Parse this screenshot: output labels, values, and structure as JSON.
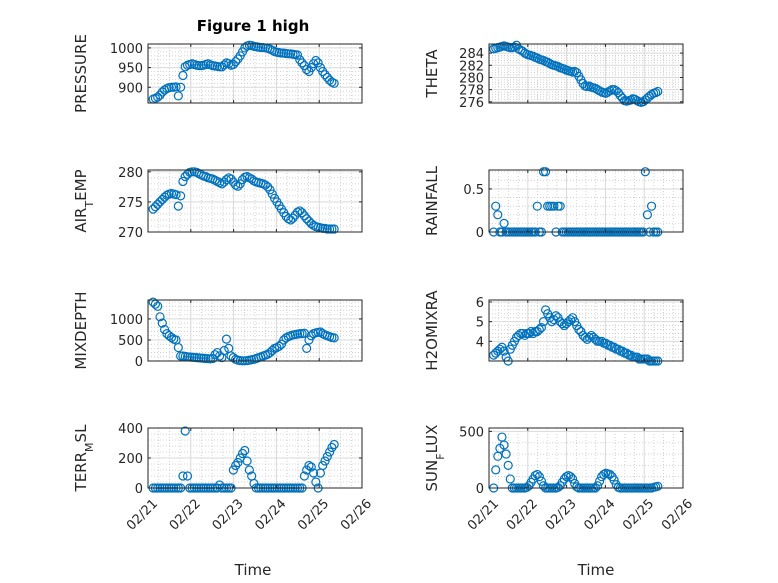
{
  "figure": {
    "title": "Figure 1 high"
  },
  "colors": {
    "marker": "#0072bd",
    "grid": "#d9d9d9",
    "axis": "#262626"
  },
  "chart_data": [
    {
      "id": "pressure",
      "type": "scatter",
      "title": "Figure 1 high",
      "ylabel": "PRESSURE",
      "ylabel_sub": "",
      "xlabel": "",
      "xlim": [
        0,
        5
      ],
      "ylim": [
        860,
        1010
      ],
      "xticks": [],
      "yticks": [
        900,
        950,
        1000
      ],
      "y": [
        870,
        872,
        875,
        880,
        888,
        893,
        897,
        899,
        900,
        900,
        901,
        878,
        900,
        930,
        952,
        956,
        958,
        960,
        958,
        956,
        955,
        955,
        956,
        958,
        960,
        957,
        955,
        954,
        953,
        952,
        952,
        957,
        962,
        960,
        956,
        958,
        965,
        972,
        980,
        990,
        1000,
        1005,
        1007,
        1006,
        1004,
        1003,
        1002,
        1001,
        1001,
        1000,
        999,
        997,
        994,
        991,
        989,
        988,
        987,
        987,
        986,
        985,
        985,
        984,
        983,
        982,
        970,
        962,
        955,
        945,
        940,
        950,
        960,
        968,
        962,
        950,
        940,
        932,
        925,
        918,
        913,
        910
      ]
    },
    {
      "id": "theta",
      "type": "scatter",
      "title": "",
      "ylabel": "THETA",
      "ylabel_sub": "",
      "xlabel": "",
      "xlim": [
        0,
        5
      ],
      "ylim": [
        275.8,
        285.5
      ],
      "xticks": [],
      "yticks": [
        276,
        278,
        280,
        282,
        284
      ],
      "y": [
        284.7,
        284.8,
        284.9,
        285.0,
        285.1,
        285.2,
        285.1,
        285.0,
        284.9,
        284.9,
        285.0,
        285.3,
        284.7,
        284.5,
        284.3,
        284.0,
        283.8,
        283.7,
        283.6,
        283.5,
        283.3,
        283.2,
        283.0,
        282.9,
        282.8,
        282.6,
        282.5,
        282.3,
        282.1,
        282.0,
        281.9,
        281.8,
        281.6,
        281.5,
        281.4,
        281.2,
        281.1,
        281.0,
        280.9,
        281.0,
        280.8,
        280.2,
        279.6,
        279.0,
        278.6,
        278.5,
        278.6,
        278.4,
        278.3,
        278.2,
        278.0,
        277.8,
        277.6,
        277.5,
        277.4,
        277.6,
        277.8,
        278.0,
        278.0,
        277.8,
        277.5,
        277.0,
        276.6,
        276.2,
        276.1,
        276.2,
        276.3,
        276.5,
        276.4,
        276.2,
        276.0,
        275.9,
        276.0,
        276.3,
        276.6,
        276.9,
        277.2,
        277.4,
        277.5,
        277.7
      ]
    },
    {
      "id": "air_temp",
      "type": "scatter",
      "title": "",
      "ylabel": "AIR",
      "ylabel_sub": "T",
      "ylabel_suffix": "EMP",
      "xlabel": "",
      "xlim": [
        0,
        5
      ],
      "ylim": [
        270,
        280.3
      ],
      "xticks": [],
      "yticks": [
        270,
        275,
        280
      ],
      "y": [
        273.8,
        274.2,
        274.6,
        275.0,
        275.4,
        275.8,
        276.1,
        276.3,
        276.4,
        276.3,
        276.2,
        274.3,
        276.0,
        278.4,
        279.2,
        279.6,
        279.9,
        280.0,
        280.0,
        279.9,
        279.7,
        279.5,
        279.3,
        279.2,
        279.0,
        278.9,
        278.8,
        278.6,
        278.4,
        278.2,
        278.0,
        278.3,
        278.7,
        279.0,
        278.8,
        278.3,
        277.8,
        277.6,
        278.0,
        278.7,
        279.1,
        279.2,
        279.0,
        278.8,
        278.5,
        278.3,
        278.2,
        278.1,
        278.0,
        277.8,
        277.5,
        277.0,
        276.3,
        275.6,
        275.0,
        274.4,
        273.8,
        273.2,
        272.6,
        272.2,
        272.0,
        272.3,
        272.8,
        273.3,
        273.5,
        273.2,
        272.7,
        272.2,
        271.8,
        271.4,
        271.1,
        270.9,
        270.8,
        270.7,
        270.6,
        270.6,
        270.5,
        270.5,
        270.5,
        270.5
      ]
    },
    {
      "id": "rainfall",
      "type": "scatter",
      "title": "",
      "ylabel": "RAINFALL",
      "ylabel_sub": "",
      "xlabel": "",
      "xlim": [
        0,
        5
      ],
      "ylim": [
        0,
        0.72
      ],
      "xticks": [],
      "yticks": [
        0,
        0.5
      ],
      "y": [
        0,
        0.3,
        0.2,
        0,
        0,
        0.1,
        0,
        0,
        0,
        0,
        0,
        0,
        0,
        0,
        0,
        0,
        0,
        0,
        0,
        0,
        0,
        0.3,
        0,
        0,
        0.7,
        0.7,
        0.3,
        0.3,
        0.3,
        0.3,
        0,
        0.3,
        0.3,
        0,
        0,
        0,
        0,
        0,
        0,
        0,
        0,
        0,
        0,
        0,
        0,
        0,
        0,
        0,
        0,
        0,
        0,
        0,
        0,
        0,
        0,
        0,
        0,
        0,
        0,
        0,
        0,
        0,
        0,
        0,
        0,
        0,
        0,
        0,
        0,
        0,
        0,
        0,
        0,
        0.7,
        0.2,
        0,
        0.3,
        0,
        0,
        0
      ]
    },
    {
      "id": "mixdepth",
      "type": "scatter",
      "title": "",
      "ylabel": "MIXDEPTH",
      "ylabel_sub": "",
      "xlabel": "",
      "xlim": [
        0,
        5
      ],
      "ylim": [
        0,
        1450
      ],
      "xticks": [],
      "yticks": [
        0,
        500,
        1000
      ],
      "y": [
        1400,
        1350,
        1300,
        1050,
        900,
        750,
        650,
        600,
        560,
        520,
        500,
        320,
        120,
        120,
        110,
        100,
        95,
        90,
        85,
        80,
        75,
        70,
        65,
        60,
        55,
        50,
        60,
        150,
        200,
        120,
        80,
        250,
        520,
        300,
        120,
        80,
        40,
        20,
        10,
        5,
        5,
        10,
        20,
        30,
        40,
        60,
        80,
        100,
        120,
        140,
        160,
        200,
        250,
        300,
        320,
        350,
        400,
        500,
        550,
        580,
        600,
        620,
        630,
        640,
        650,
        650,
        660,
        300,
        500,
        600,
        650,
        670,
        680,
        690,
        650,
        620,
        600,
        580,
        560,
        550
      ]
    },
    {
      "id": "h2omixra",
      "type": "scatter",
      "title": "",
      "ylabel": "H2OMIXRA",
      "ylabel_sub": "",
      "xlabel": "",
      "xlim": [
        0,
        5
      ],
      "ylim": [
        3,
        6.1
      ],
      "xticks": [],
      "yticks": [
        4,
        5,
        6
      ],
      "y": [
        3.3,
        3.4,
        3.5,
        3.6,
        3.7,
        3.5,
        3.2,
        3.0,
        3.6,
        3.8,
        4.0,
        4.2,
        4.3,
        4.4,
        4.4,
        4.3,
        4.4,
        4.4,
        4.5,
        4.4,
        4.5,
        4.5,
        4.6,
        4.7,
        5.0,
        5.6,
        5.4,
        5.2,
        5.0,
        5.1,
        5.3,
        5.2,
        5.0,
        4.9,
        4.8,
        4.9,
        5.0,
        5.1,
        5.2,
        5.0,
        4.8,
        4.6,
        4.5,
        4.3,
        4.2,
        4.1,
        4.2,
        4.3,
        4.2,
        4.1,
        4.0,
        4.0,
        4.0,
        3.9,
        3.9,
        3.8,
        3.8,
        3.7,
        3.7,
        3.6,
        3.6,
        3.5,
        3.5,
        3.4,
        3.4,
        3.3,
        3.3,
        3.2,
        3.2,
        3.2,
        3.1,
        3.1,
        3.1,
        3.1,
        3.1,
        3.0,
        3.0,
        3.0,
        3.0,
        3.0
      ]
    },
    {
      "id": "terr_msl",
      "type": "scatter",
      "title": "",
      "ylabel": "TERR",
      "ylabel_sub": "M",
      "ylabel_suffix": "SL",
      "xlabel": "Time",
      "xlim": [
        0,
        5
      ],
      "ylim": [
        0,
        400
      ],
      "xticks": [
        "02/21",
        "02/22",
        "02/23",
        "02/24",
        "02/25",
        "02/26"
      ],
      "yticks": [
        0,
        200,
        400
      ],
      "y": [
        0,
        0,
        0,
        0,
        0,
        0,
        0,
        0,
        0,
        0,
        0,
        0,
        0,
        80,
        380,
        80,
        0,
        0,
        0,
        0,
        0,
        0,
        0,
        0,
        0,
        0,
        0,
        0,
        0,
        20,
        0,
        0,
        0,
        0,
        0,
        120,
        150,
        170,
        200,
        230,
        250,
        180,
        120,
        80,
        30,
        0,
        0,
        0,
        0,
        0,
        0,
        0,
        0,
        0,
        0,
        0,
        0,
        0,
        0,
        0,
        0,
        0,
        0,
        0,
        0,
        0,
        80,
        120,
        150,
        140,
        100,
        40,
        0,
        100,
        150,
        180,
        210,
        240,
        270,
        290
      ]
    },
    {
      "id": "sun_flux",
      "type": "scatter",
      "title": "",
      "ylabel": "SUN",
      "ylabel_sub": "F",
      "ylabel_suffix": "LUX",
      "xlabel": "Time",
      "xlim": [
        0,
        5
      ],
      "ylim": [
        0,
        530
      ],
      "xticks": [
        "02/21",
        "02/22",
        "02/23",
        "02/24",
        "02/25",
        "02/26"
      ],
      "yticks": [
        0,
        500
      ],
      "y": [
        0,
        160,
        280,
        350,
        450,
        380,
        300,
        200,
        80,
        0,
        0,
        0,
        0,
        0,
        0,
        0,
        5,
        20,
        50,
        80,
        110,
        120,
        100,
        60,
        20,
        0,
        0,
        0,
        0,
        0,
        0,
        5,
        20,
        50,
        80,
        100,
        110,
        100,
        80,
        40,
        10,
        0,
        0,
        0,
        0,
        0,
        0,
        0,
        0,
        0,
        20,
        60,
        100,
        120,
        130,
        125,
        120,
        100,
        70,
        30,
        5,
        0,
        0,
        0,
        0,
        0,
        0,
        0,
        0,
        0,
        0,
        0,
        0,
        0,
        0,
        0,
        0,
        5,
        10,
        15
      ]
    }
  ]
}
